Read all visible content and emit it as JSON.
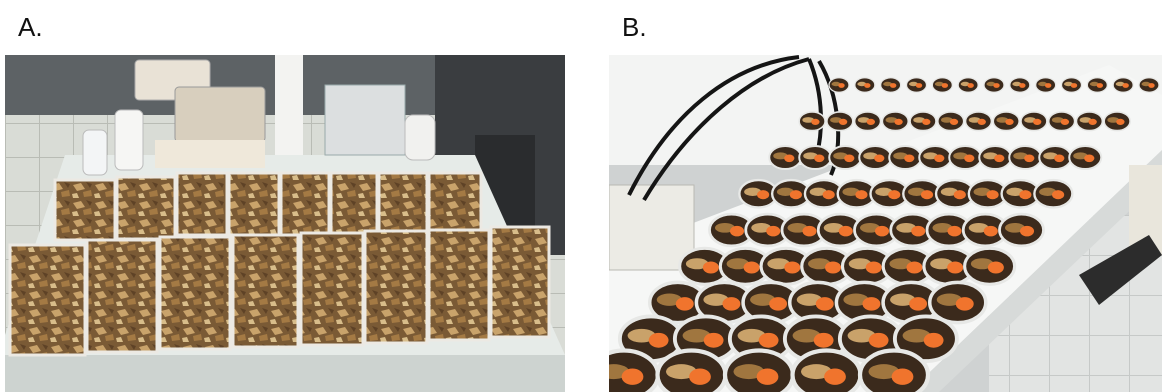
{
  "panels": [
    {
      "label": "A."
    },
    {
      "label": "B."
    }
  ]
}
